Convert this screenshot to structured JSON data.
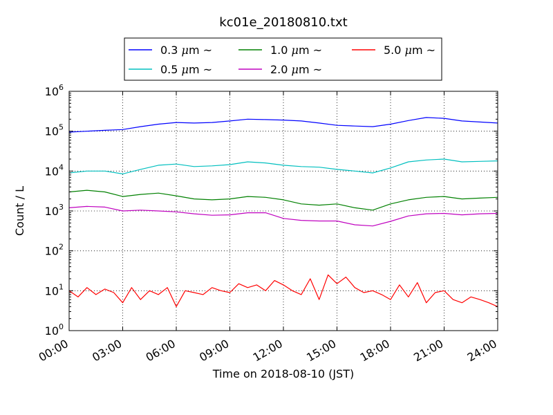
{
  "chart_data": {
    "type": "line",
    "title": "kc01e_20180810.txt",
    "xlabel": "Time on 2018-08-10 (JST)",
    "ylabel": "Count / L",
    "x_unit": "hours",
    "x_range": [
      0,
      24
    ],
    "x_ticks": [
      0,
      3,
      6,
      9,
      12,
      15,
      18,
      21,
      24
    ],
    "x_tick_labels": [
      "00:00",
      "03:00",
      "06:00",
      "09:00",
      "12:00",
      "15:00",
      "18:00",
      "21:00",
      "24:00"
    ],
    "y_scale": "log",
    "ylim": [
      1,
      1000000
    ],
    "y_tick_values": [
      1,
      10,
      100,
      1000,
      10000,
      100000,
      1000000
    ],
    "y_tick_labels": [
      {
        "base": "10",
        "exp": "0"
      },
      {
        "base": "10",
        "exp": "1"
      },
      {
        "base": "10",
        "exp": "2"
      },
      {
        "base": "10",
        "exp": "3"
      },
      {
        "base": "10",
        "exp": "4"
      },
      {
        "base": "10",
        "exp": "5"
      },
      {
        "base": "10",
        "exp": "6"
      }
    ],
    "grid": true,
    "legend_position": "top-center, above plot",
    "series": [
      {
        "name": "0.3 μm ~",
        "label_prefix": "0.3 ",
        "label_mu": "μ",
        "label_suffix": "m ~",
        "color": "#0000ff",
        "x": [
          0,
          1,
          2,
          3,
          4,
          5,
          6,
          7,
          8,
          9,
          10,
          11,
          12,
          13,
          14,
          15,
          16,
          17,
          18,
          19,
          20,
          21,
          22,
          23,
          24
        ],
        "values": [
          95000,
          100000,
          105000,
          110000,
          130000,
          150000,
          165000,
          160000,
          165000,
          180000,
          200000,
          195000,
          190000,
          180000,
          160000,
          140000,
          135000,
          130000,
          150000,
          185000,
          220000,
          210000,
          180000,
          170000,
          160000
        ]
      },
      {
        "name": "0.5 μm ~",
        "label_prefix": "0.5 ",
        "label_mu": "μ",
        "label_suffix": "m ~",
        "color": "#00bfbf",
        "x": [
          0,
          1,
          2,
          3,
          4,
          5,
          6,
          7,
          8,
          9,
          10,
          11,
          12,
          13,
          14,
          15,
          16,
          17,
          18,
          19,
          20,
          21,
          22,
          23,
          24
        ],
        "values": [
          9000,
          10000,
          10000,
          8500,
          11000,
          14000,
          15000,
          13000,
          13500,
          14500,
          17000,
          16000,
          14000,
          13000,
          12500,
          11000,
          10000,
          9000,
          12000,
          17000,
          19000,
          20000,
          17000,
          17500,
          18000
        ]
      },
      {
        "name": "1.0 μm ~",
        "label_prefix": "1.0 ",
        "label_mu": "μ",
        "label_suffix": "m ~",
        "color": "#008000",
        "x": [
          0,
          1,
          2,
          3,
          4,
          5,
          6,
          7,
          8,
          9,
          10,
          11,
          12,
          13,
          14,
          15,
          16,
          17,
          18,
          19,
          20,
          21,
          22,
          23,
          24
        ],
        "values": [
          3000,
          3300,
          3000,
          2300,
          2600,
          2800,
          2400,
          2000,
          1900,
          2000,
          2300,
          2200,
          1900,
          1500,
          1400,
          1500,
          1200,
          1050,
          1500,
          1900,
          2200,
          2300,
          2000,
          2100,
          2200
        ]
      },
      {
        "name": "2.0 μm ~",
        "label_prefix": "2.0 ",
        "label_mu": "μ",
        "label_suffix": "m ~",
        "color": "#bf00bf",
        "x": [
          0,
          1,
          2,
          3,
          4,
          5,
          6,
          7,
          8,
          9,
          10,
          11,
          12,
          13,
          14,
          15,
          16,
          17,
          18,
          19,
          20,
          21,
          22,
          23,
          24
        ],
        "values": [
          1200,
          1300,
          1250,
          1000,
          1050,
          1000,
          950,
          850,
          780,
          800,
          900,
          900,
          650,
          580,
          560,
          560,
          450,
          420,
          550,
          750,
          850,
          870,
          800,
          850,
          870
        ]
      },
      {
        "name": "5.0 μm ~",
        "label_prefix": "5.0 ",
        "label_mu": "μ",
        "label_suffix": "m ~",
        "color": "#ff0000",
        "x": [
          0,
          0.5,
          1,
          1.5,
          2,
          2.5,
          3,
          3.5,
          4,
          4.5,
          5,
          5.5,
          6,
          6.5,
          7,
          7.5,
          8,
          8.5,
          9,
          9.5,
          10,
          10.5,
          11,
          11.5,
          12,
          12.5,
          13,
          13.5,
          14,
          14.5,
          15,
          15.5,
          16,
          16.5,
          17,
          17.5,
          18,
          18.5,
          19,
          19.5,
          20,
          20.5,
          21,
          21.5,
          22,
          22.5,
          23,
          23.5,
          24
        ],
        "values": [
          10,
          7,
          12,
          8,
          11,
          9,
          5,
          12,
          6,
          10,
          8,
          12,
          4,
          10,
          9,
          8,
          12,
          10,
          9,
          15,
          12,
          14,
          10,
          18,
          14,
          10,
          8,
          20,
          6,
          25,
          15,
          22,
          12,
          9,
          10,
          8,
          6,
          14,
          7,
          16,
          5,
          9,
          10,
          6,
          5,
          7,
          6,
          5,
          4
        ]
      }
    ]
  }
}
